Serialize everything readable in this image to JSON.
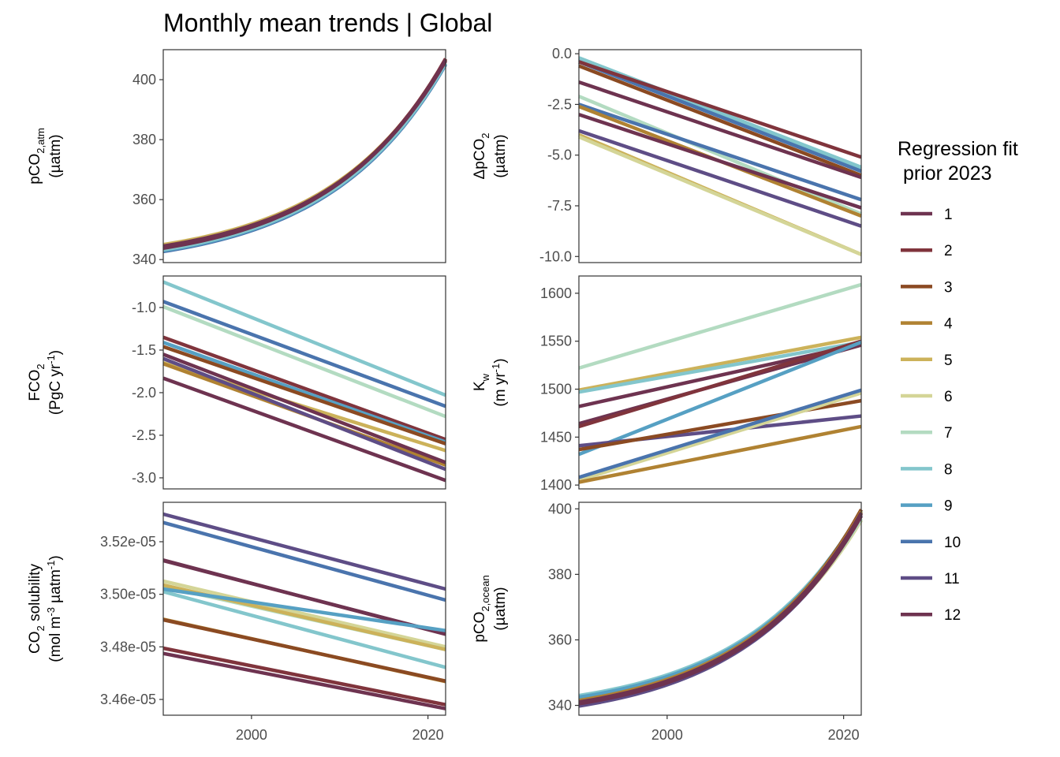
{
  "title": "Monthly mean trends | Global",
  "colors": {
    "1": "#6e3350",
    "2": "#80343c",
    "3": "#8b4a22",
    "4": "#b08232",
    "5": "#ccb25a",
    "6": "#d4d597",
    "7": "#b3dbc1",
    "8": "#83c6cc",
    "9": "#56a0c3",
    "10": "#4a74ad",
    "11": "#5e4d86",
    "12": "#6e3350"
  },
  "legend": {
    "title_line1": "Regression fit",
    "title_line2": " prior 2023",
    "items": [
      "1",
      "2",
      "3",
      "4",
      "5",
      "6",
      "7",
      "8",
      "9",
      "10",
      "11",
      "12"
    ]
  },
  "chart_data": [
    {
      "type": "line",
      "id": "pco2atm",
      "ylabel_main": "pCO",
      "ylabel_sub": "2,atm",
      "ylabel_line2": "(µatm)",
      "xlim": [
        1990,
        2022
      ],
      "ylim": [
        339,
        410
      ],
      "yticks": [
        340,
        360,
        380,
        400
      ],
      "ytick_labels": [
        "340",
        "360",
        "380",
        "400"
      ],
      "xticks": [],
      "curve": "exp",
      "series": [
        {
          "month": "10",
          "y0": 342.7,
          "y1": 405.0
        },
        {
          "month": "9",
          "y0": 343.0,
          "y1": 405.2
        },
        {
          "month": "8",
          "y0": 343.3,
          "y1": 405.5
        },
        {
          "month": "5",
          "y0": 345.0,
          "y1": 406.5
        },
        {
          "month": "3",
          "y0": 344.3,
          "y1": 406.8
        },
        {
          "month": "2",
          "y0": 344.0,
          "y1": 407.0
        },
        {
          "month": "1",
          "y0": 343.8,
          "y1": 406.6
        },
        {
          "month": "12",
          "y0": 344.5,
          "y1": 406.2
        }
      ]
    },
    {
      "type": "line",
      "id": "dpco2",
      "ylabel_main": "ΔpCO",
      "ylabel_sub": "2",
      "ylabel_line2": "(µatm)",
      "xlim": [
        1990,
        2022
      ],
      "ylim": [
        -10.3,
        0.2
      ],
      "yticks": [
        0.0,
        -2.5,
        -5.0,
        -7.5,
        -10.0
      ],
      "ytick_labels": [
        "0.0",
        "-2.5",
        "-5.0",
        "-7.5",
        "-10.0"
      ],
      "xticks": [],
      "curve": "linear",
      "series": [
        {
          "month": "9",
          "y0": -0.3,
          "y1": -5.7
        },
        {
          "month": "8",
          "y0": -0.2,
          "y1": -5.6
        },
        {
          "month": "10",
          "y0": -0.4,
          "y1": -5.8
        },
        {
          "month": "2",
          "y0": -0.4,
          "y1": -5.1
        },
        {
          "month": "3",
          "y0": -0.6,
          "y1": -6.0
        },
        {
          "month": "1",
          "y0": -1.4,
          "y1": -6.1
        },
        {
          "month": "7",
          "y0": -2.1,
          "y1": -7.9
        },
        {
          "month": "10",
          "y0": -2.5,
          "y1": -7.2
        },
        {
          "month": "4",
          "y0": -2.6,
          "y1": -8.0
        },
        {
          "month": "12",
          "y0": -3.0,
          "y1": -7.6
        },
        {
          "month": "11",
          "y0": -3.8,
          "y1": -8.5
        },
        {
          "month": "5",
          "y0": -4.0,
          "y1": -9.9
        },
        {
          "month": "6",
          "y0": -4.1,
          "y1": -9.9
        }
      ]
    },
    {
      "type": "line",
      "id": "fco2",
      "ylabel_main": "FCO",
      "ylabel_sub": "2",
      "ylabel_line2": "(PgC yr",
      "ylabel_line2_sup": "-1",
      "ylabel_line2_end": ")",
      "xlim": [
        1990,
        2022
      ],
      "ylim": [
        -3.13,
        -0.63
      ],
      "yticks": [
        -1.0,
        -1.5,
        -2.0,
        -2.5,
        -3.0
      ],
      "ytick_labels": [
        "-1.0",
        "-1.5",
        "-2.0",
        "-2.5",
        "-3.0"
      ],
      "xticks": [],
      "curve": "linear",
      "series": [
        {
          "month": "8",
          "y0": -0.7,
          "y1": -2.03
        },
        {
          "month": "7",
          "y0": -0.99,
          "y1": -2.28
        },
        {
          "month": "10",
          "y0": -0.93,
          "y1": -2.16
        },
        {
          "month": "2",
          "y0": -1.35,
          "y1": -2.55
        },
        {
          "month": "9",
          "y0": -1.41,
          "y1": -2.58
        },
        {
          "month": "3",
          "y0": -1.46,
          "y1": -2.6
        },
        {
          "month": "5",
          "y0": -1.65,
          "y1": -2.68
        },
        {
          "month": "4",
          "y0": -1.66,
          "y1": -2.85
        },
        {
          "month": "1",
          "y0": -1.55,
          "y1": -2.82
        },
        {
          "month": "11",
          "y0": -1.6,
          "y1": -2.9
        },
        {
          "month": "12",
          "y0": -1.83,
          "y1": -3.03
        }
      ]
    },
    {
      "type": "line",
      "id": "kw",
      "ylabel_main": "K",
      "ylabel_sub": "w",
      "ylabel_line2": "(m yr",
      "ylabel_line2_sup": "-1",
      "ylabel_line2_end": ")",
      "xlim": [
        1990,
        2022
      ],
      "ylim": [
        1396,
        1618
      ],
      "yticks": [
        1400,
        1450,
        1500,
        1550,
        1600
      ],
      "ytick_labels": [
        "1400",
        "1450",
        "1500",
        "1550",
        "1600"
      ],
      "xticks": [],
      "curve": "linear",
      "series": [
        {
          "month": "7",
          "y0": 1522,
          "y1": 1609
        },
        {
          "month": "5",
          "y0": 1499,
          "y1": 1554
        },
        {
          "month": "8",
          "y0": 1497,
          "y1": 1549
        },
        {
          "month": "12",
          "y0": 1482,
          "y1": 1547
        },
        {
          "month": "1",
          "y0": 1464,
          "y1": 1546
        },
        {
          "month": "2",
          "y0": 1461,
          "y1": 1550
        },
        {
          "month": "9",
          "y0": 1432,
          "y1": 1549
        },
        {
          "month": "11",
          "y0": 1441,
          "y1": 1472
        },
        {
          "month": "3",
          "y0": 1437,
          "y1": 1488
        },
        {
          "month": "6",
          "y0": 1405,
          "y1": 1496
        },
        {
          "month": "10",
          "y0": 1408,
          "y1": 1499
        },
        {
          "month": "4",
          "y0": 1403,
          "y1": 1461
        }
      ]
    },
    {
      "type": "line",
      "id": "solubility",
      "ylabel_main": "CO",
      "ylabel_sub": "2",
      "ylabel_main_rest": " solubility",
      "ylabel_line2": "(mol m",
      "ylabel_line2_sup": "-3",
      "ylabel_line2_mid": " µatm",
      "ylabel_line2_sup2": "-1",
      "ylabel_line2_end": ")",
      "xlim": [
        1990,
        2022
      ],
      "ylim": [
        3.454e-05,
        3.535e-05
      ],
      "yticks": [
        3.46e-05,
        3.48e-05,
        3.5e-05,
        3.52e-05
      ],
      "ytick_labels": [
        "3.46e-05",
        "3.48e-05",
        "3.50e-05",
        "3.52e-05"
      ],
      "xticks": [
        2000,
        2020
      ],
      "xtick_labels": [
        "2000",
        "2020"
      ],
      "curve": "linear",
      "series": [
        {
          "month": "11",
          "y0": 3.5305e-05,
          "y1": 3.502e-05
        },
        {
          "month": "10",
          "y0": 3.5273e-05,
          "y1": 3.4978e-05
        },
        {
          "month": "12",
          "y0": 3.513e-05,
          "y1": 3.4848e-05
        },
        {
          "month": "1",
          "y0": 3.5128e-05,
          "y1": 3.485e-05
        },
        {
          "month": "6",
          "y0": 3.505e-05,
          "y1": 3.48e-05
        },
        {
          "month": "7",
          "y0": 3.503e-05,
          "y1": 3.479e-05
        },
        {
          "month": "5",
          "y0": 3.5035e-05,
          "y1": 3.479e-05
        },
        {
          "month": "8",
          "y0": 3.501e-05,
          "y1": 3.4722e-05
        },
        {
          "month": "9",
          "y0": 3.502e-05,
          "y1": 3.4862e-05
        },
        {
          "month": "4",
          "y0": 3.4905e-05,
          "y1": 3.4668e-05
        },
        {
          "month": "3",
          "y0": 3.4903e-05,
          "y1": 3.467e-05
        },
        {
          "month": "2",
          "y0": 3.4795e-05,
          "y1": 3.458e-05
        },
        {
          "month": "12",
          "y0": 3.4775e-05,
          "y1": 3.4565e-05
        }
      ]
    },
    {
      "type": "line",
      "id": "pco2ocean",
      "ylabel_main": "pCO",
      "ylabel_sub": "2,ocean",
      "ylabel_line2": "(µatm)",
      "xlim": [
        1990,
        2022
      ],
      "ylim": [
        337,
        402
      ],
      "yticks": [
        340,
        360,
        380,
        400
      ],
      "ytick_labels": [
        "340",
        "360",
        "380",
        "400"
      ],
      "xticks": [
        2000,
        2020
      ],
      "xtick_labels": [
        "2000",
        "2020"
      ],
      "curve": "exp",
      "series": [
        {
          "month": "6",
          "y0": 342.0,
          "y1": 396.5
        },
        {
          "month": "7",
          "y0": 342.5,
          "y1": 397.0
        },
        {
          "month": "8",
          "y0": 343.0,
          "y1": 399.5
        },
        {
          "month": "9",
          "y0": 342.5,
          "y1": 399.0
        },
        {
          "month": "10",
          "y0": 341.5,
          "y1": 398.5
        },
        {
          "month": "3",
          "y0": 341.0,
          "y1": 399.8
        },
        {
          "month": "4",
          "y0": 341.5,
          "y1": 399.2
        },
        {
          "month": "2",
          "y0": 340.0,
          "y1": 398.5
        },
        {
          "month": "11",
          "y0": 339.8,
          "y1": 398.0
        },
        {
          "month": "12",
          "y0": 340.5,
          "y1": 397.8
        },
        {
          "month": "1",
          "y0": 341.0,
          "y1": 398.8
        }
      ]
    }
  ]
}
